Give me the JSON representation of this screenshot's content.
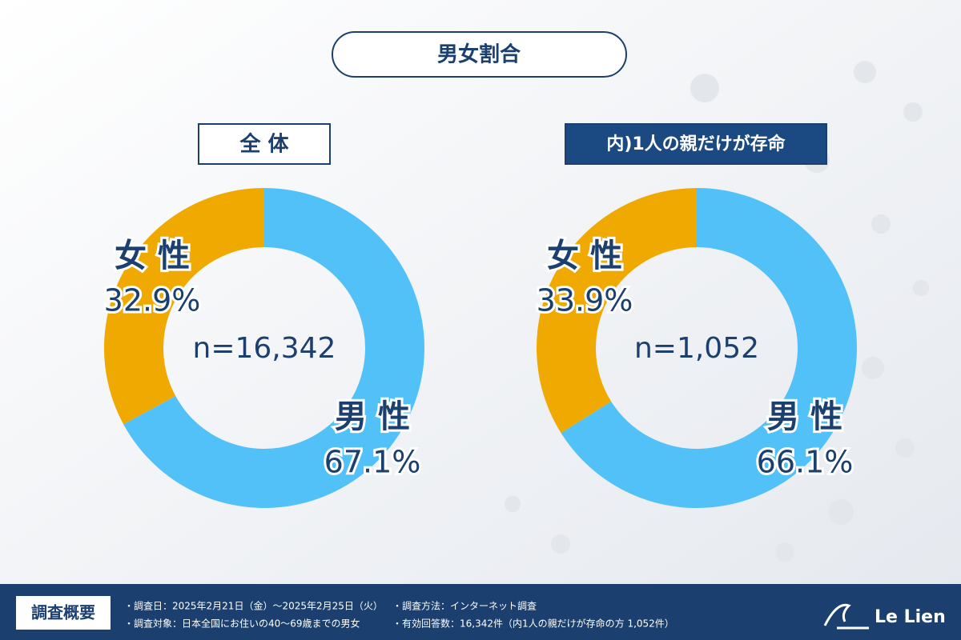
{
  "title": "男女割合",
  "chart_data": [
    {
      "type": "donut",
      "title": "全 体",
      "center_label": "n=16,342",
      "categories": [
        "男 性",
        "女 性"
      ],
      "values": [
        67.1,
        32.9
      ],
      "value_labels": [
        "67.1%",
        "32.9%"
      ],
      "colors": [
        "#52c1f7",
        "#f0a900"
      ]
    },
    {
      "type": "donut",
      "title": "内)1人の親だけが存命",
      "center_label": "n=1,052",
      "categories": [
        "男 性",
        "女 性"
      ],
      "values": [
        66.1,
        33.9
      ],
      "value_labels": [
        "66.1%",
        "33.9%"
      ],
      "colors": [
        "#52c1f7",
        "#f0a900"
      ]
    }
  ],
  "footer": {
    "heading": "調査概要",
    "items": [
      "・調査日：2025年2月21日（金）～2025年2月25日（火）",
      "・調査方法：インターネット調査",
      "・調査対象：日本全国にお住いの40～69歳までの男女",
      "・有効回答数：16,342件（内1人の親だけが存命の方 1,052件）"
    ],
    "logo": "Le Lien"
  }
}
